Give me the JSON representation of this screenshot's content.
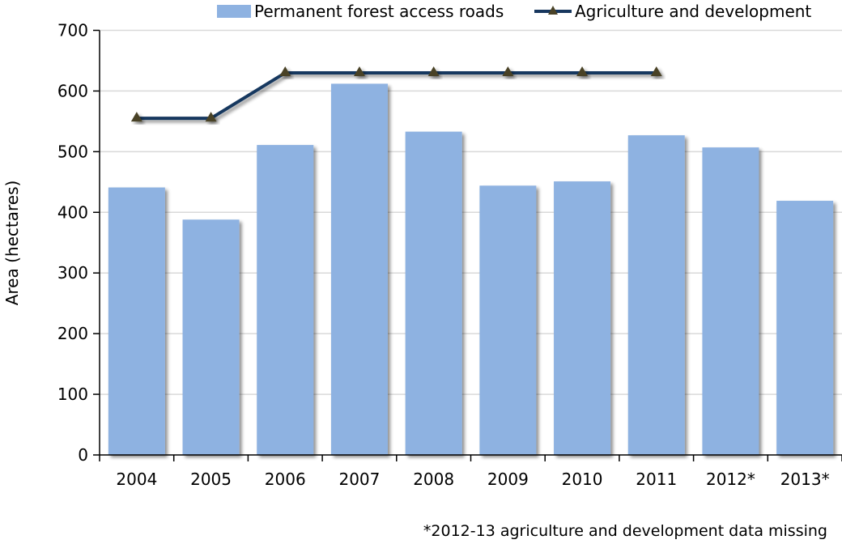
{
  "chart_data": {
    "type": "bar",
    "title": "",
    "xlabel": "",
    "ylabel": "Area (hectares)",
    "ylim": [
      0,
      700
    ],
    "yticks": [
      0,
      100,
      200,
      300,
      400,
      500,
      600,
      700
    ],
    "grid": true,
    "legend_placement": "top-right",
    "categories": [
      "2004",
      "2005",
      "2006",
      "2007",
      "2008",
      "2009",
      "2010",
      "2011",
      "2012*",
      "2013*"
    ],
    "series": [
      {
        "name": "Permanent forest access roads",
        "kind": "bar",
        "color": "#8EB2E1",
        "values": [
          441,
          388,
          511,
          612,
          533,
          444,
          451,
          527,
          507,
          419
        ]
      },
      {
        "name": "Agriculture and development",
        "kind": "line",
        "color": "#17375E",
        "marker": "triangle",
        "marker_color": "#4A4328",
        "values": [
          555,
          555,
          630,
          630,
          630,
          630,
          630,
          630,
          null,
          null
        ]
      }
    ],
    "footnote": "*2012-13 agriculture and development data missing"
  }
}
